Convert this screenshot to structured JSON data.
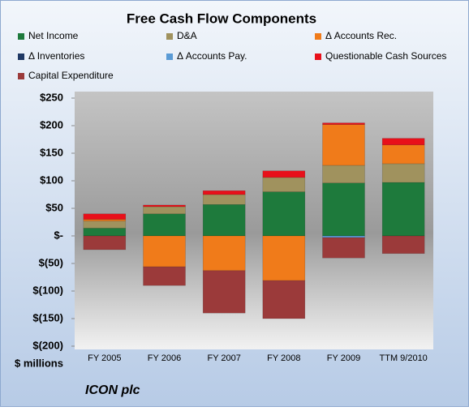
{
  "chart_data": {
    "type": "bar",
    "stacked": true,
    "title": "Free Cash Flow Components",
    "categories": [
      "FY 2005",
      "FY 2006",
      "FY 2007",
      "FY 2008",
      "FY 2009",
      "TTM 9/2010"
    ],
    "series": [
      {
        "name": "Net Income",
        "color": "#1e7a3c",
        "values": [
          14,
          40,
          57,
          80,
          96,
          97
        ]
      },
      {
        "name": "D&A",
        "color": "#a0925e",
        "values": [
          13,
          13,
          18,
          26,
          32,
          34
        ]
      },
      {
        "name": "Δ Accounts Rec.",
        "color": "#f07b1a",
        "values": [
          3,
          -56,
          -63,
          -81,
          74,
          34
        ]
      },
      {
        "name": "Δ Inventories",
        "color": "#1f3864",
        "values": [
          0,
          0,
          0,
          0,
          0,
          0
        ]
      },
      {
        "name": "Δ Accounts Pay.",
        "color": "#5b9bd5",
        "values": [
          0,
          0,
          0,
          0,
          -3,
          0
        ]
      },
      {
        "name": "Questionable Cash Sources",
        "color": "#e8101a",
        "values": [
          10,
          3,
          7,
          12,
          3,
          12
        ]
      },
      {
        "name": "Capital Expenditure",
        "color": "#9b3a3a",
        "values": [
          -25,
          -34,
          -77,
          -69,
          -37,
          -32
        ]
      }
    ],
    "ylim": [
      -200,
      250
    ],
    "yticks": [
      {
        "value": -200,
        "label": "$(200)"
      },
      {
        "value": -150,
        "label": "$(150)"
      },
      {
        "value": -100,
        "label": "$(100)"
      },
      {
        "value": -50,
        "label": "$(50)"
      },
      {
        "value": 0,
        "label": "$-"
      },
      {
        "value": 50,
        "label": "$50"
      },
      {
        "value": 100,
        "label": "$100"
      },
      {
        "value": 150,
        "label": "$150"
      },
      {
        "value": 200,
        "label": "$200"
      },
      {
        "value": 250,
        "label": "$250"
      }
    ],
    "y_label": "$ millions",
    "annotation": "ICON plc"
  }
}
